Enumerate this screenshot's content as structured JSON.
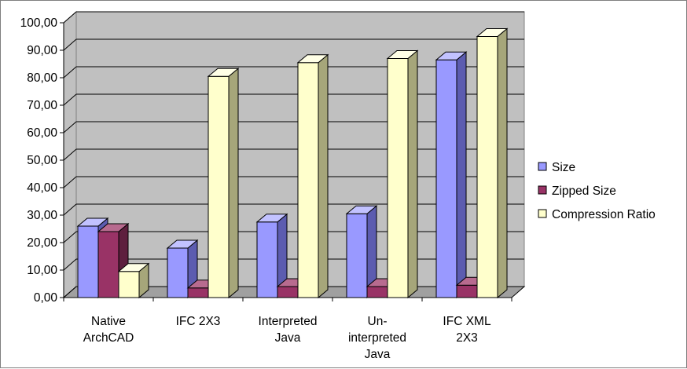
{
  "chart_data": {
    "type": "bar",
    "style": "3d-clustered-column",
    "title": "",
    "xlabel": "",
    "ylabel": "",
    "categories": [
      [
        "Native",
        "ArchCAD"
      ],
      [
        "IFC 2X3"
      ],
      [
        "Interpreted",
        "Java"
      ],
      [
        "Un-",
        "interpreted",
        "Java"
      ],
      [
        "IFC XML",
        "2X3"
      ]
    ],
    "ylim": [
      0,
      100
    ],
    "ytick_step": 10,
    "ytick_labels": [
      "0,00",
      "10,00",
      "20,00",
      "30,00",
      "40,00",
      "50,00",
      "60,00",
      "70,00",
      "80,00",
      "90,00",
      "100,00"
    ],
    "grid": true,
    "legend_position": "right",
    "series": [
      {
        "name": "Size",
        "color": "#9999ff",
        "side_color": "#5c5cb0",
        "top_color": "#c2c2ff",
        "values": [
          26,
          18,
          27.5,
          30.5,
          86.5
        ]
      },
      {
        "name": "Zipped Size",
        "color": "#993366",
        "side_color": "#5e1f3e",
        "top_color": "#b86b8f",
        "values": [
          24,
          3.5,
          4,
          4,
          4.5
        ]
      },
      {
        "name": "Compression Ratio",
        "color": "#ffffcc",
        "side_color": "#a6a67a",
        "top_color": "#ffffe6",
        "values": [
          9.5,
          80.5,
          85.5,
          87,
          95
        ]
      }
    ],
    "colors": {
      "wall": "#c0c0c0",
      "floor": "#a0a0a0",
      "grid": "#000000"
    }
  }
}
